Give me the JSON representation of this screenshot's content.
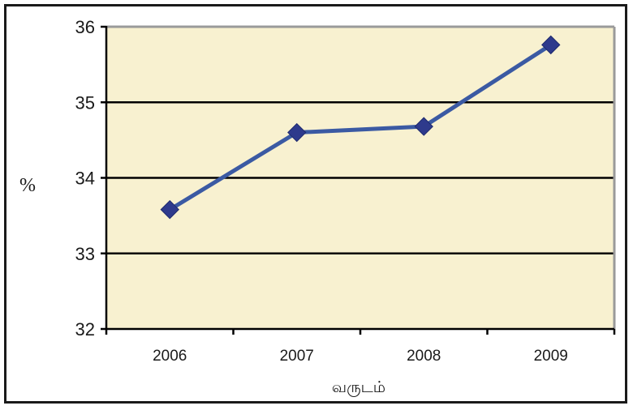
{
  "chart_data": {
    "type": "line",
    "title": "",
    "xlabel": "வருடம்",
    "ylabel": "%",
    "categories": [
      "2006",
      "2007",
      "2008",
      "2009"
    ],
    "series": [
      {
        "values": [
          33.58,
          34.6,
          34.68,
          35.76
        ]
      }
    ],
    "ylim": [
      32,
      36
    ],
    "yticks": [
      "32",
      "33",
      "34",
      "35",
      "36"
    ],
    "grid": true,
    "legend": "none",
    "colors": {
      "line": "#3b5aa3",
      "marker": "#2e3a8c",
      "plot_background": "#f8f1d0",
      "gridline": "#000000",
      "frame_right_top": "#9a9a9a"
    }
  }
}
